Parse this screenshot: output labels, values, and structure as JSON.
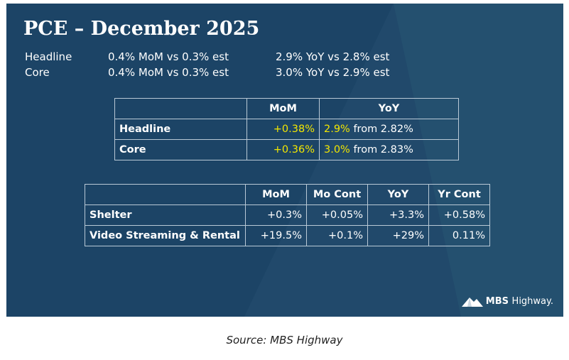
{
  "slide": {
    "title": "PCE – December 2025",
    "summary": [
      {
        "name": "Headline",
        "mom": "0.4% MoM vs 0.3% est",
        "yoy": "2.9% YoY vs 2.8% est"
      },
      {
        "name": "Core",
        "mom": "0.4% MoM vs 0.3% est",
        "yoy": "3.0% YoY vs 2.9% est"
      }
    ],
    "table1": {
      "headers": [
        "",
        "MoM",
        "YoY"
      ],
      "rows": [
        {
          "label": "Headline",
          "mom": "+0.38%",
          "yoy_value": "2.9%",
          "yoy_rest": " from 2.82%"
        },
        {
          "label": "Core",
          "mom": "+0.36%",
          "yoy_value": "3.0%",
          "yoy_rest": " from 2.83%"
        }
      ]
    },
    "table2": {
      "headers": [
        "",
        "MoM",
        "Mo Cont",
        "YoY",
        "Yr Cont"
      ],
      "rows": [
        {
          "label": "Shelter",
          "cells": [
            "+0.3%",
            "+0.05%",
            "+3.3%",
            "+0.58%"
          ]
        },
        {
          "label": "Video Streaming & Rental",
          "cells": [
            "+19.5%",
            "+0.1%",
            "+29%",
            "0.11%"
          ]
        }
      ]
    },
    "logo": {
      "brand": "MBS",
      "name": "Highway."
    },
    "colors": {
      "background": "#1c4466",
      "highlight": "#f2e600",
      "text": "#ffffff"
    }
  },
  "caption": "Source: MBS Highway"
}
